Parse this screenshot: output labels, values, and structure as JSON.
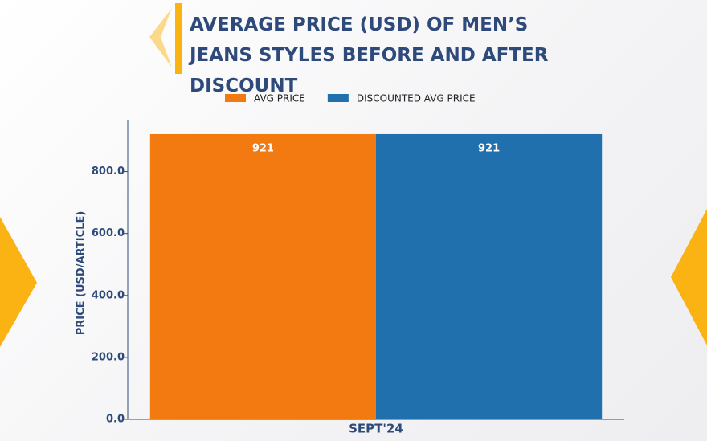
{
  "chart_data": {
    "type": "bar",
    "title": "AVERAGE PRICE (USD) OF MEN’S JEANS STYLES BEFORE AND AFTER DISCOUNT",
    "categories": [
      "SEPT'24"
    ],
    "series": [
      {
        "name": "AVG PRICE",
        "color": "#f27a10",
        "values": [
          921
        ]
      },
      {
        "name": "DISCOUNTED AVG PRICE",
        "color": "#2070ad",
        "values": [
          921
        ]
      }
    ],
    "ylabel": "PRICE (USD/ARTICLE)",
    "ylim": [
      0,
      965
    ],
    "yticks": [
      {
        "value": 0,
        "label": "0.0"
      },
      {
        "value": 200,
        "label": "200.0"
      },
      {
        "value": 400,
        "label": "400.0"
      },
      {
        "value": 600,
        "label": "600.0"
      },
      {
        "value": 800,
        "label": "800.0"
      }
    ],
    "legend": "top"
  }
}
